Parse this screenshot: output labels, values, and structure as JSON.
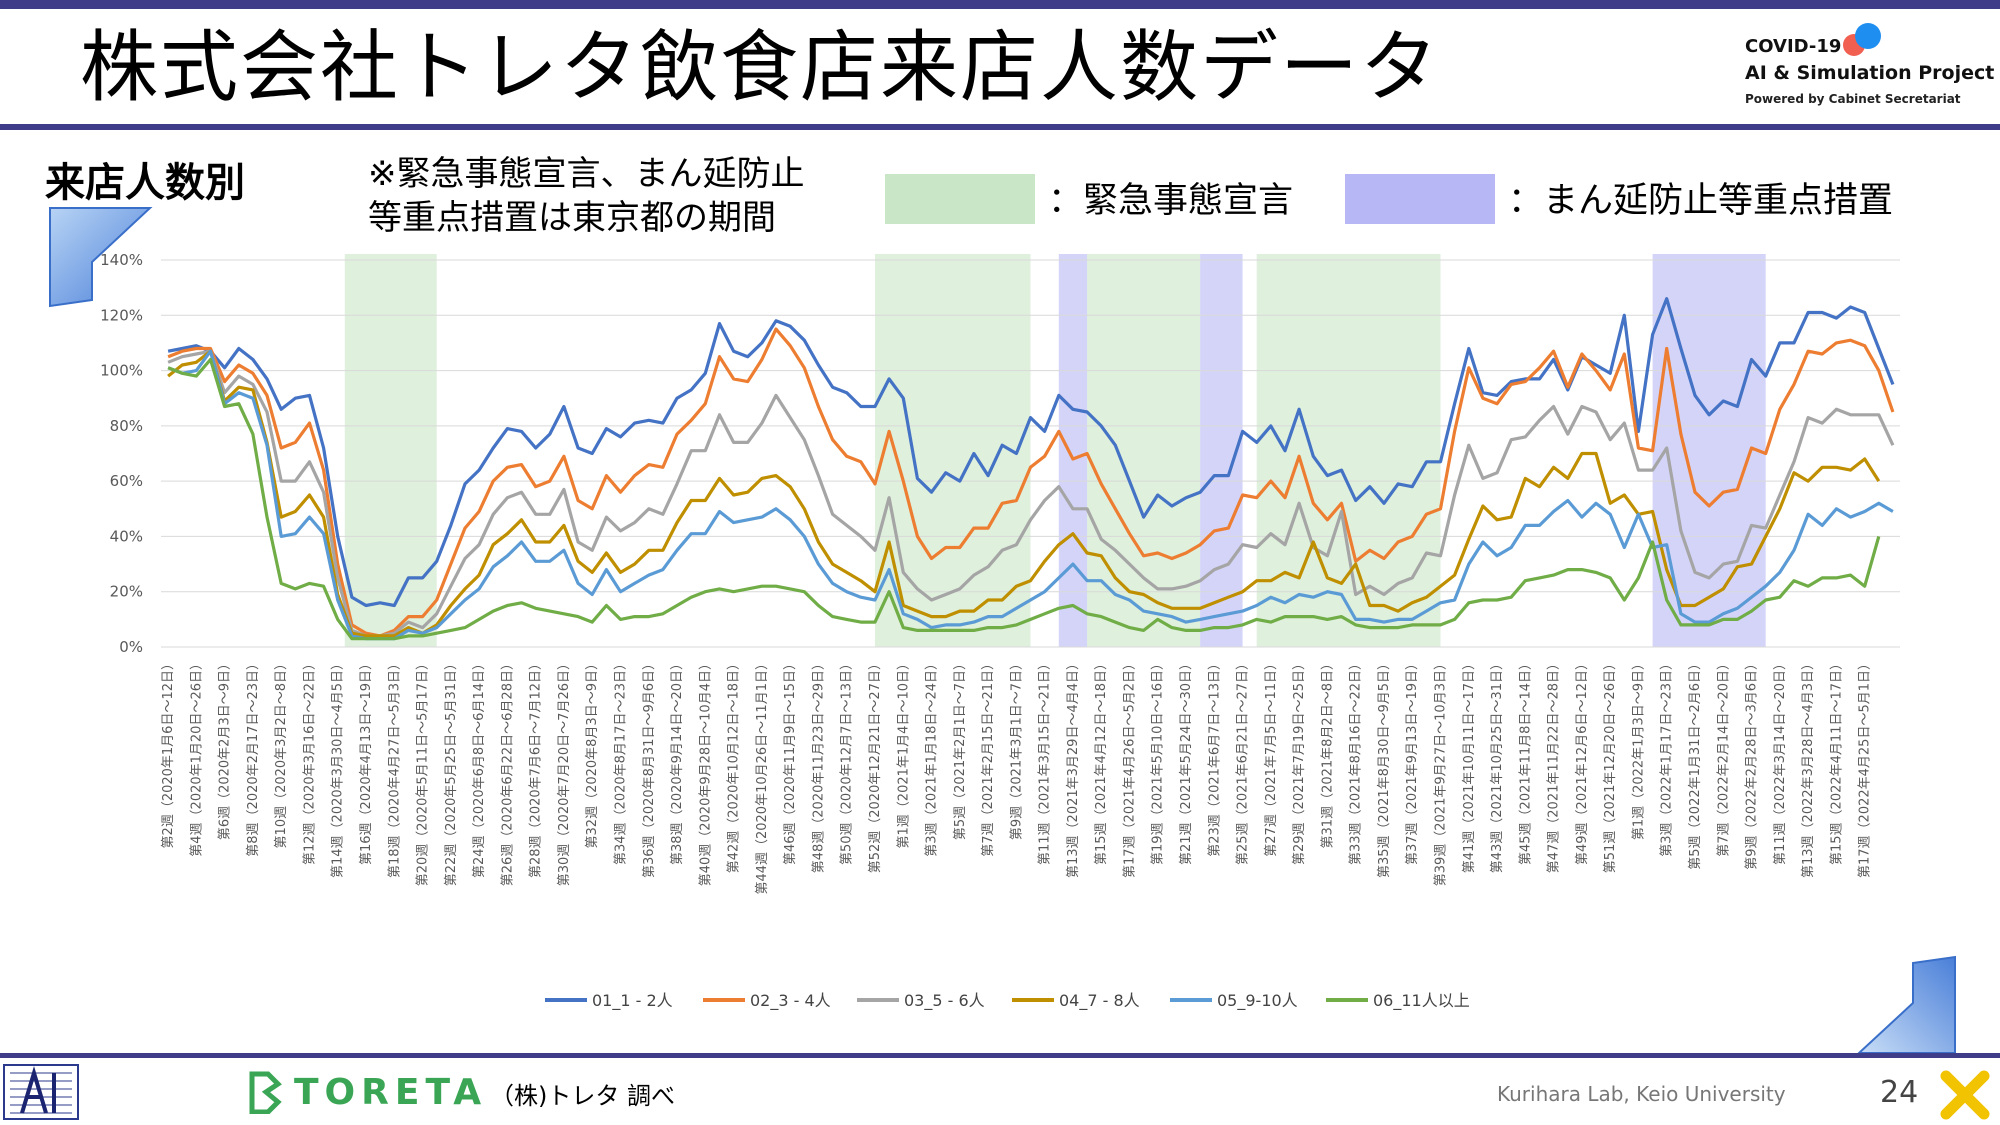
{
  "header": {
    "title": "株式会社トレタ飲食店来店人数データ",
    "logo_line1": "COVID-19",
    "logo_line2": "AI & Simulation Project",
    "logo_line3": "Powered by Cabinet Secretariat"
  },
  "section_title": "来店人数別",
  "note_line1": "※緊急事態宣言、まん延防止",
  "note_line2": "等重点措置は東京都の期間",
  "legend_boxes": {
    "emergency_label": "：緊急事態宣言",
    "manbo_label": "：まん延防止等重点措置",
    "emergency_color": "#c9e6c6",
    "manbo_color": "#b7b7f5"
  },
  "footer": {
    "toreta": "TORETA",
    "survey": "（株)トレタ 調べ",
    "lab": "Kurihara Lab, Keio University",
    "page": "24"
  },
  "chart_data": {
    "type": "line",
    "ylim": [
      0,
      1.4
    ],
    "y_tick_labels": [
      "0%",
      "20%",
      "40%",
      "60%",
      "80%",
      "100%",
      "120%",
      "140%"
    ],
    "grid": true,
    "legend_position": "bottom",
    "x_tick_labels": [
      "第2週（2020年1月6日～12日）",
      "第4週（2020年1月20日～26日）",
      "第6週（2020年2月3日～9日）",
      "第8週（2020年2月17日～23日）",
      "第10週（2020年3月2日～8日）",
      "第12週（2020年3月16日～22日）",
      "第14週（2020年3月30日～4月5日）",
      "第16週（2020年4月13日～19日）",
      "第18週（2020年4月27日～5月3日）",
      "第20週（2020年5月11日～5月17日）",
      "第22週（2020年5月25日～5月31日）",
      "第24週（2020年6月8日～6月14日）",
      "第26週（2020年6月22日～6月28日）",
      "第28週（2020年7月6日～7月12日）",
      "第30週（2020年7月20日～7月26日）",
      "第32週（2020年8月3日～9日）",
      "第34週（2020年8月17日～23日）",
      "第36週（2020年8月31日～9月6日）",
      "第38週（2020年9月14日～20日）",
      "第40週（2020年9月28日～10月4日）",
      "第42週（2020年10月12日～18日）",
      "第44週（2020年10月26日～11月1日）",
      "第46週（2020年11月9日～15日）",
      "第48週（2020年11月23日～29日）",
      "第50週（2020年12月7日～13日）",
      "第52週（2020年12月21日～27日）",
      "第1週（2021年1月4日～10日）",
      "第3週（2021年1月18日～24日）",
      "第5週（2021年2月1日～7日）",
      "第7週（2021年2月15日～21日）",
      "第9週（2021年3月1日～7日）",
      "第11週（2021年3月15日～21日）",
      "第13週（2021年3月29日～4月4日）",
      "第15週（2021年4月12日～18日）",
      "第17週（2021年4月26日～5月2日）",
      "第19週（2021年5月10日～16日）",
      "第21週（2021年5月24日～30日）",
      "第23週（2021年6月7日～13日）",
      "第25週（2021年6月21日～27日）",
      "第27週（2021年7月5日～11日）",
      "第29週（2021年7月19日～25日）",
      "第31週（2021年8月2日～8日）",
      "第33週（2021年8月16日～22日）",
      "第35週（2021年8月30日～9月5日）",
      "第37週（2021年9月13日～19日）",
      "第39週（2021年9月27日～10月3日）",
      "第41週（2021年10月11日～17日）",
      "第43週（2021年10月25日～31日）",
      "第45週（2021年11月8日～14日）",
      "第47週（2021年11月22日～28日）",
      "第49週（2021年12月6日～12日）",
      "第51週（2021年12月20日～26日）",
      "第1週（2022年1月3日～9日）",
      "第3週（2022年1月17日～23日）",
      "第5週（2022年1月31日～2月6日）",
      "第7週（2022年2月14日～20日）",
      "第9週（2022年2月28日～3月6日）",
      "第11週（2022年3月14日～20日）",
      "第13週（2022年3月28日～4月3日）",
      "第15週（2022年4月11日～17日）",
      "第17週（2022年4月25日～5月1日）"
    ],
    "emergency_ranges": [
      [
        13,
        19.5
      ],
      [
        50.5,
        61.5
      ],
      [
        65.5,
        73.5
      ],
      [
        77.5,
        90.5
      ]
    ],
    "manbo_ranges": [
      [
        63.5,
        65.5
      ],
      [
        73.5,
        76.5
      ],
      [
        105.5,
        113.5
      ]
    ],
    "series": [
      {
        "name": "01_1 - 2人",
        "color": "#4472c4",
        "values": [
          1.07,
          1.08,
          1.09,
          1.07,
          1.01,
          1.08,
          1.04,
          0.97,
          0.86,
          0.9,
          0.91,
          0.72,
          0.4,
          0.18,
          0.15,
          0.16,
          0.15,
          0.25,
          0.25,
          0.31,
          0.44,
          0.59,
          0.64,
          0.72,
          0.79,
          0.78,
          0.72,
          0.77,
          0.87,
          0.72,
          0.7,
          0.79,
          0.76,
          0.81,
          0.82,
          0.81,
          0.9,
          0.93,
          0.99,
          1.17,
          1.07,
          1.05,
          1.1,
          1.18,
          1.16,
          1.11,
          1.02,
          0.94,
          0.92,
          0.87,
          0.87,
          0.97,
          0.9,
          0.61,
          0.56,
          0.63,
          0.6,
          0.7,
          0.62,
          0.73,
          0.7,
          0.83,
          0.78,
          0.91,
          0.86,
          0.85,
          0.8,
          0.73,
          0.6,
          0.47,
          0.55,
          0.51,
          0.54,
          0.56,
          0.62,
          0.62,
          0.78,
          0.74,
          0.8,
          0.71,
          0.86,
          0.69,
          0.62,
          0.64,
          0.53,
          0.58,
          0.52,
          0.59,
          0.58,
          0.67,
          0.67,
          0.88,
          1.08,
          0.92,
          0.91,
          0.96,
          0.97,
          0.97,
          1.04,
          0.93,
          1.05,
          1.02,
          0.99,
          1.2,
          0.78,
          1.13,
          1.26,
          1.08,
          0.91,
          0.84,
          0.89,
          0.87,
          1.04,
          0.98,
          1.1,
          1.1,
          1.21,
          1.21,
          1.19,
          1.23,
          1.21,
          1.08,
          0.95
        ]
      },
      {
        "name": "02_3 - 4人",
        "color": "#ed7d31",
        "values": [
          1.05,
          1.07,
          1.08,
          1.08,
          0.96,
          1.02,
          0.99,
          0.91,
          0.72,
          0.74,
          0.81,
          0.64,
          0.3,
          0.08,
          0.05,
          0.04,
          0.06,
          0.11,
          0.11,
          0.17,
          0.3,
          0.43,
          0.49,
          0.6,
          0.65,
          0.66,
          0.58,
          0.6,
          0.69,
          0.53,
          0.5,
          0.62,
          0.56,
          0.62,
          0.66,
          0.65,
          0.77,
          0.82,
          0.88,
          1.05,
          0.97,
          0.96,
          1.04,
          1.15,
          1.09,
          1.01,
          0.87,
          0.75,
          0.69,
          0.67,
          0.59,
          0.78,
          0.6,
          0.4,
          0.32,
          0.36,
          0.36,
          0.43,
          0.43,
          0.52,
          0.53,
          0.65,
          0.69,
          0.78,
          0.68,
          0.7,
          0.59,
          0.5,
          0.41,
          0.33,
          0.34,
          0.32,
          0.34,
          0.37,
          0.42,
          0.43,
          0.55,
          0.54,
          0.6,
          0.54,
          0.69,
          0.52,
          0.46,
          0.52,
          0.31,
          0.35,
          0.32,
          0.38,
          0.4,
          0.48,
          0.5,
          0.78,
          1.01,
          0.9,
          0.88,
          0.95,
          0.96,
          1.01,
          1.07,
          0.94,
          1.06,
          1.0,
          0.93,
          1.06,
          0.72,
          0.71,
          1.08,
          0.77,
          0.56,
          0.51,
          0.56,
          0.57,
          0.72,
          0.7,
          0.86,
          0.95,
          1.07,
          1.06,
          1.1,
          1.11,
          1.09,
          1.0,
          0.85
        ]
      },
      {
        "name": "03_5 - 6人",
        "color": "#a5a5a5",
        "values": [
          1.03,
          1.05,
          1.06,
          1.07,
          0.92,
          0.98,
          0.95,
          0.85,
          0.6,
          0.6,
          0.67,
          0.56,
          0.25,
          0.06,
          0.04,
          0.04,
          0.05,
          0.09,
          0.07,
          0.12,
          0.22,
          0.32,
          0.37,
          0.48,
          0.54,
          0.56,
          0.48,
          0.48,
          0.57,
          0.38,
          0.35,
          0.47,
          0.42,
          0.45,
          0.5,
          0.48,
          0.59,
          0.71,
          0.71,
          0.84,
          0.74,
          0.74,
          0.81,
          0.91,
          0.83,
          0.75,
          0.62,
          0.48,
          0.44,
          0.4,
          0.35,
          0.54,
          0.27,
          0.21,
          0.17,
          0.19,
          0.21,
          0.26,
          0.29,
          0.35,
          0.37,
          0.46,
          0.53,
          0.58,
          0.5,
          0.5,
          0.39,
          0.35,
          0.3,
          0.25,
          0.21,
          0.21,
          0.22,
          0.24,
          0.28,
          0.3,
          0.37,
          0.36,
          0.41,
          0.37,
          0.52,
          0.36,
          0.33,
          0.49,
          0.19,
          0.22,
          0.19,
          0.23,
          0.25,
          0.34,
          0.33,
          0.55,
          0.73,
          0.61,
          0.63,
          0.75,
          0.76,
          0.82,
          0.87,
          0.77,
          0.87,
          0.85,
          0.75,
          0.81,
          0.64,
          0.64,
          0.72,
          0.42,
          0.27,
          0.25,
          0.3,
          0.31,
          0.44,
          0.43,
          0.55,
          0.67,
          0.83,
          0.81,
          0.86,
          0.84,
          0.84,
          0.84,
          0.73
        ]
      },
      {
        "name": "04_7 - 8人",
        "color": "#bf8f00",
        "values": [
          0.98,
          1.02,
          1.03,
          1.07,
          0.89,
          0.94,
          0.93,
          0.74,
          0.47,
          0.49,
          0.55,
          0.47,
          0.19,
          0.05,
          0.04,
          0.04,
          0.04,
          0.07,
          0.05,
          0.08,
          0.15,
          0.21,
          0.26,
          0.37,
          0.41,
          0.46,
          0.38,
          0.38,
          0.44,
          0.31,
          0.27,
          0.34,
          0.27,
          0.3,
          0.35,
          0.35,
          0.45,
          0.53,
          0.53,
          0.61,
          0.55,
          0.56,
          0.61,
          0.62,
          0.58,
          0.5,
          0.38,
          0.3,
          0.27,
          0.24,
          0.2,
          0.38,
          0.15,
          0.13,
          0.11,
          0.11,
          0.13,
          0.13,
          0.17,
          0.17,
          0.22,
          0.24,
          0.31,
          0.37,
          0.41,
          0.34,
          0.33,
          0.25,
          0.2,
          0.19,
          0.16,
          0.14,
          0.14,
          0.14,
          0.16,
          0.18,
          0.2,
          0.24,
          0.24,
          0.27,
          0.25,
          0.38,
          0.25,
          0.23,
          0.3,
          0.15,
          0.15,
          0.13,
          0.16,
          0.18,
          0.22,
          0.26,
          0.39,
          0.51,
          0.46,
          0.47,
          0.61,
          0.58,
          0.65,
          0.61,
          0.7,
          0.7,
          0.52,
          0.55,
          0.48,
          0.49,
          0.28,
          0.15,
          0.15,
          0.18,
          0.21,
          0.29,
          0.3,
          0.4,
          0.5,
          0.63,
          0.6,
          0.65,
          0.65,
          0.64,
          0.68,
          0.6
        ]
      },
      {
        "name": "05_9-10人",
        "color": "#5b9bd5",
        "values": [
          1.01,
          0.99,
          1.0,
          1.07,
          0.88,
          0.92,
          0.9,
          0.73,
          0.4,
          0.41,
          0.47,
          0.41,
          0.17,
          0.04,
          0.03,
          0.03,
          0.03,
          0.06,
          0.05,
          0.07,
          0.12,
          0.17,
          0.21,
          0.29,
          0.33,
          0.38,
          0.31,
          0.31,
          0.35,
          0.23,
          0.19,
          0.28,
          0.2,
          0.23,
          0.26,
          0.28,
          0.35,
          0.41,
          0.41,
          0.49,
          0.45,
          0.46,
          0.47,
          0.5,
          0.46,
          0.4,
          0.3,
          0.23,
          0.2,
          0.18,
          0.17,
          0.28,
          0.12,
          0.1,
          0.07,
          0.08,
          0.08,
          0.09,
          0.11,
          0.11,
          0.14,
          0.17,
          0.2,
          0.25,
          0.3,
          0.24,
          0.24,
          0.19,
          0.17,
          0.13,
          0.12,
          0.11,
          0.09,
          0.1,
          0.11,
          0.12,
          0.13,
          0.15,
          0.18,
          0.16,
          0.19,
          0.18,
          0.2,
          0.19,
          0.1,
          0.1,
          0.09,
          0.1,
          0.1,
          0.13,
          0.16,
          0.17,
          0.3,
          0.38,
          0.33,
          0.36,
          0.44,
          0.44,
          0.49,
          0.53,
          0.47,
          0.52,
          0.48,
          0.36,
          0.48,
          0.36,
          0.37,
          0.12,
          0.09,
          0.09,
          0.12,
          0.14,
          0.18,
          0.22,
          0.27,
          0.35,
          0.48,
          0.44,
          0.5,
          0.47,
          0.49,
          0.52,
          0.49
        ]
      },
      {
        "name": "06_11人以上",
        "color": "#70ad47",
        "values": [
          1.01,
          0.99,
          0.98,
          1.04,
          0.87,
          0.88,
          0.77,
          0.47,
          0.23,
          0.21,
          0.23,
          0.22,
          0.1,
          0.03,
          0.03,
          0.03,
          0.03,
          0.04,
          0.04,
          0.05,
          0.06,
          0.07,
          0.1,
          0.13,
          0.15,
          0.16,
          0.14,
          0.13,
          0.12,
          0.11,
          0.09,
          0.15,
          0.1,
          0.11,
          0.11,
          0.12,
          0.15,
          0.18,
          0.2,
          0.21,
          0.2,
          0.21,
          0.22,
          0.22,
          0.21,
          0.2,
          0.15,
          0.11,
          0.1,
          0.09,
          0.09,
          0.2,
          0.07,
          0.06,
          0.06,
          0.06,
          0.06,
          0.06,
          0.07,
          0.07,
          0.08,
          0.1,
          0.12,
          0.14,
          0.15,
          0.12,
          0.11,
          0.09,
          0.07,
          0.06,
          0.1,
          0.07,
          0.06,
          0.06,
          0.07,
          0.07,
          0.08,
          0.1,
          0.09,
          0.11,
          0.11,
          0.11,
          0.1,
          0.11,
          0.08,
          0.07,
          0.07,
          0.07,
          0.08,
          0.08,
          0.08,
          0.1,
          0.16,
          0.17,
          0.17,
          0.18,
          0.24,
          0.25,
          0.26,
          0.28,
          0.28,
          0.27,
          0.25,
          0.17,
          0.25,
          0.38,
          0.17,
          0.08,
          0.08,
          0.08,
          0.1,
          0.1,
          0.13,
          0.17,
          0.18,
          0.24,
          0.22,
          0.25,
          0.25,
          0.26,
          0.22,
          0.4
        ]
      }
    ]
  }
}
